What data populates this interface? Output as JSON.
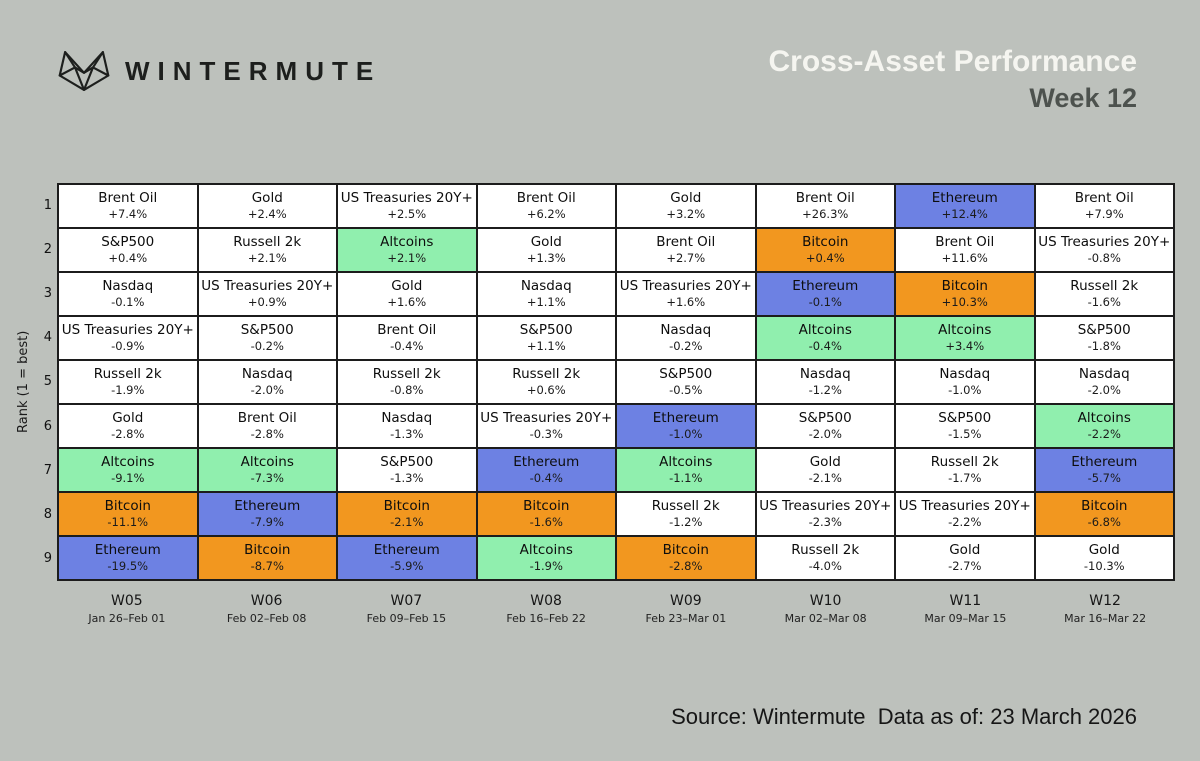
{
  "header": {
    "brand": "WINTERMUTE",
    "title": "Cross-Asset Performance",
    "subtitle": "Week 12"
  },
  "footer": {
    "source": "Source: Wintermute",
    "as_of": "Data as of: 23 March 2026"
  },
  "chart_data": {
    "type": "table",
    "subtype": "weekly-rank-grid",
    "title": "Cross-Asset Performance",
    "subtitle": "Week 12",
    "ylabel": "Rank (1 = best)",
    "ranks": [
      "1",
      "2",
      "3",
      "4",
      "5",
      "6",
      "7",
      "8",
      "9"
    ],
    "weeks": [
      {
        "label": "W05",
        "range": "Jan 26–Feb 01"
      },
      {
        "label": "W06",
        "range": "Feb 02–Feb 08"
      },
      {
        "label": "W07",
        "range": "Feb 09–Feb 15"
      },
      {
        "label": "W08",
        "range": "Feb 16–Feb 22"
      },
      {
        "label": "W09",
        "range": "Feb 23–Mar 01"
      },
      {
        "label": "W10",
        "range": "Mar 02–Mar 08"
      },
      {
        "label": "W11",
        "range": "Mar 09–Mar 15"
      },
      {
        "label": "W12",
        "range": "Mar 16–Mar 22"
      }
    ],
    "highlight_colors": {
      "Ethereum": "#6d81e3",
      "Bitcoin": "#f2971f",
      "Altcoins": "#90efae",
      "default": "#ffffff"
    },
    "cells": [
      [
        {
          "asset": "Brent Oil",
          "change": "+7.4%"
        },
        {
          "asset": "Gold",
          "change": "+2.4%"
        },
        {
          "asset": "US Treasuries 20Y+",
          "change": "+2.5%"
        },
        {
          "asset": "Brent Oil",
          "change": "+6.2%"
        },
        {
          "asset": "Gold",
          "change": "+3.2%"
        },
        {
          "asset": "Brent Oil",
          "change": "+26.3%"
        },
        {
          "asset": "Ethereum",
          "change": "+12.4%"
        },
        {
          "asset": "Brent Oil",
          "change": "+7.9%"
        }
      ],
      [
        {
          "asset": "S&P500",
          "change": "+0.4%"
        },
        {
          "asset": "Russell 2k",
          "change": "+2.1%"
        },
        {
          "asset": "Altcoins",
          "change": "+2.1%"
        },
        {
          "asset": "Gold",
          "change": "+1.3%"
        },
        {
          "asset": "Brent Oil",
          "change": "+2.7%"
        },
        {
          "asset": "Bitcoin",
          "change": "+0.4%"
        },
        {
          "asset": "Brent Oil",
          "change": "+11.6%"
        },
        {
          "asset": "US Treasuries 20Y+",
          "change": "-0.8%"
        }
      ],
      [
        {
          "asset": "Nasdaq",
          "change": "-0.1%"
        },
        {
          "asset": "US Treasuries 20Y+",
          "change": "+0.9%"
        },
        {
          "asset": "Gold",
          "change": "+1.6%"
        },
        {
          "asset": "Nasdaq",
          "change": "+1.1%"
        },
        {
          "asset": "US Treasuries 20Y+",
          "change": "+1.6%"
        },
        {
          "asset": "Ethereum",
          "change": "-0.1%"
        },
        {
          "asset": "Bitcoin",
          "change": "+10.3%"
        },
        {
          "asset": "Russell 2k",
          "change": "-1.6%"
        }
      ],
      [
        {
          "asset": "US Treasuries 20Y+",
          "change": "-0.9%"
        },
        {
          "asset": "S&P500",
          "change": "-0.2%"
        },
        {
          "asset": "Brent Oil",
          "change": "-0.4%"
        },
        {
          "asset": "S&P500",
          "change": "+1.1%"
        },
        {
          "asset": "Nasdaq",
          "change": "-0.2%"
        },
        {
          "asset": "Altcoins",
          "change": "-0.4%"
        },
        {
          "asset": "Altcoins",
          "change": "+3.4%"
        },
        {
          "asset": "S&P500",
          "change": "-1.8%"
        }
      ],
      [
        {
          "asset": "Russell 2k",
          "change": "-1.9%"
        },
        {
          "asset": "Nasdaq",
          "change": "-2.0%"
        },
        {
          "asset": "Russell 2k",
          "change": "-0.8%"
        },
        {
          "asset": "Russell 2k",
          "change": "+0.6%"
        },
        {
          "asset": "S&P500",
          "change": "-0.5%"
        },
        {
          "asset": "Nasdaq",
          "change": "-1.2%"
        },
        {
          "asset": "Nasdaq",
          "change": "-1.0%"
        },
        {
          "asset": "Nasdaq",
          "change": "-2.0%"
        }
      ],
      [
        {
          "asset": "Gold",
          "change": "-2.8%"
        },
        {
          "asset": "Brent Oil",
          "change": "-2.8%"
        },
        {
          "asset": "Nasdaq",
          "change": "-1.3%"
        },
        {
          "asset": "US Treasuries 20Y+",
          "change": "-0.3%"
        },
        {
          "asset": "Ethereum",
          "change": "-1.0%"
        },
        {
          "asset": "S&P500",
          "change": "-2.0%"
        },
        {
          "asset": "S&P500",
          "change": "-1.5%"
        },
        {
          "asset": "Altcoins",
          "change": "-2.2%"
        }
      ],
      [
        {
          "asset": "Altcoins",
          "change": "-9.1%"
        },
        {
          "asset": "Altcoins",
          "change": "-7.3%"
        },
        {
          "asset": "S&P500",
          "change": "-1.3%"
        },
        {
          "asset": "Ethereum",
          "change": "-0.4%"
        },
        {
          "asset": "Altcoins",
          "change": "-1.1%"
        },
        {
          "asset": "Gold",
          "change": "-2.1%"
        },
        {
          "asset": "Russell 2k",
          "change": "-1.7%"
        },
        {
          "asset": "Ethereum",
          "change": "-5.7%"
        }
      ],
      [
        {
          "asset": "Bitcoin",
          "change": "-11.1%"
        },
        {
          "asset": "Ethereum",
          "change": "-7.9%"
        },
        {
          "asset": "Bitcoin",
          "change": "-2.1%"
        },
        {
          "asset": "Bitcoin",
          "change": "-1.6%"
        },
        {
          "asset": "Russell 2k",
          "change": "-1.2%"
        },
        {
          "asset": "US Treasuries 20Y+",
          "change": "-2.3%"
        },
        {
          "asset": "US Treasuries 20Y+",
          "change": "-2.2%"
        },
        {
          "asset": "Bitcoin",
          "change": "-6.8%"
        }
      ],
      [
        {
          "asset": "Ethereum",
          "change": "-19.5%"
        },
        {
          "asset": "Bitcoin",
          "change": "-8.7%"
        },
        {
          "asset": "Ethereum",
          "change": "-5.9%"
        },
        {
          "asset": "Altcoins",
          "change": "-1.9%"
        },
        {
          "asset": "Bitcoin",
          "change": "-2.8%"
        },
        {
          "asset": "Russell 2k",
          "change": "-4.0%"
        },
        {
          "asset": "Gold",
          "change": "-2.7%"
        },
        {
          "asset": "Gold",
          "change": "-10.3%"
        }
      ]
    ]
  }
}
